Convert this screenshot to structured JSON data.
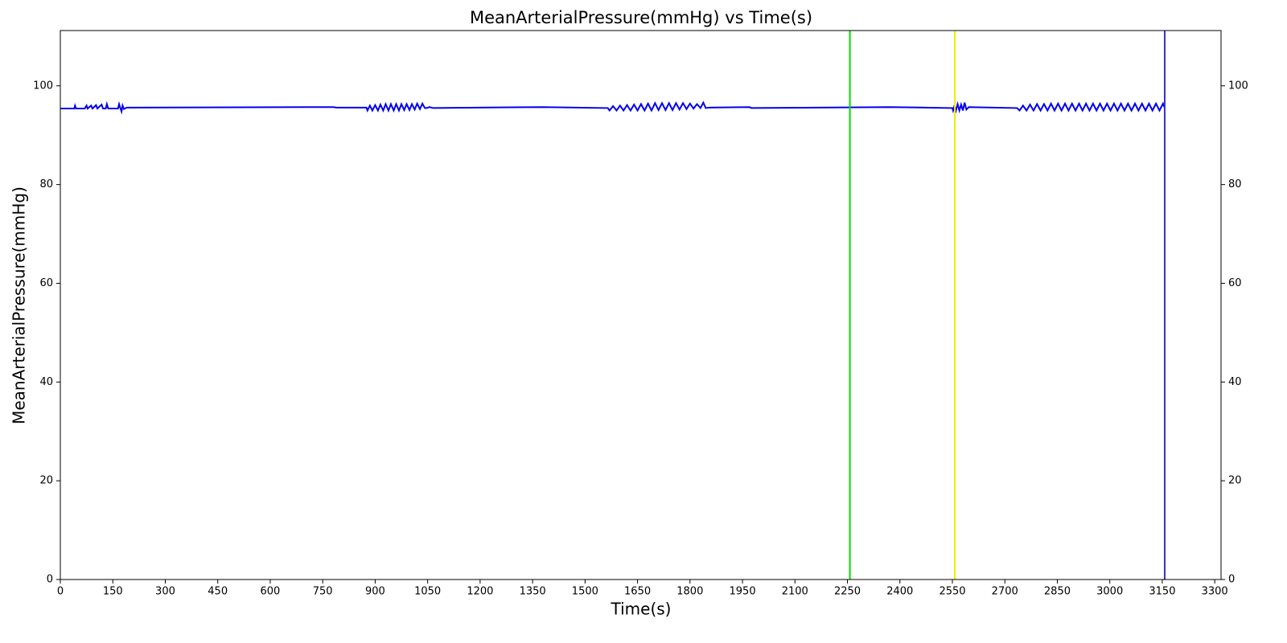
{
  "chart_data": {
    "type": "line",
    "title": "MeanArterialPressure(mmHg) vs Time(s)",
    "x_label": "Time(s)",
    "y_label": "MeanArterialPressure(mmHg)",
    "xlim": [
      0,
      3318
    ],
    "ylim": [
      0,
      111.2
    ],
    "xticks": [
      0,
      150,
      300,
      450,
      600,
      750,
      900,
      1050,
      1200,
      1350,
      1500,
      1650,
      1800,
      1950,
      2100,
      2250,
      2400,
      2550,
      2700,
      2850,
      3000,
      3150,
      3300
    ],
    "yticks": [
      0,
      20,
      40,
      60,
      80,
      100
    ],
    "right_axis_ticks": true,
    "grid": false,
    "x": [
      0,
      40,
      42,
      45,
      70,
      75,
      78,
      88,
      92,
      102,
      106,
      118,
      122,
      130,
      133,
      137,
      165,
      168,
      172,
      175,
      178,
      182,
      190,
      780,
      790,
      875,
      878,
      885,
      892,
      900,
      908,
      915,
      923,
      930,
      938,
      945,
      953,
      960,
      968,
      975,
      983,
      990,
      998,
      1005,
      1013,
      1020,
      1028,
      1035,
      1042,
      1048,
      1055,
      1065,
      1380,
      1565,
      1570,
      1580,
      1590,
      1600,
      1610,
      1620,
      1630,
      1640,
      1650,
      1660,
      1670,
      1680,
      1690,
      1700,
      1710,
      1720,
      1730,
      1740,
      1750,
      1760,
      1770,
      1780,
      1790,
      1800,
      1810,
      1820,
      1830,
      1838,
      1845,
      1855,
      1970,
      1975,
      2370,
      2550,
      2552,
      2556,
      2560,
      2565,
      2570,
      2575,
      2580,
      2585,
      2590,
      2597,
      2735,
      2742,
      2752,
      2762,
      2772,
      2782,
      2792,
      2802,
      2812,
      2822,
      2832,
      2842,
      2852,
      2862,
      2872,
      2882,
      2892,
      2902,
      2912,
      2922,
      2932,
      2942,
      2952,
      2962,
      2972,
      2982,
      2992,
      3002,
      3012,
      3022,
      3032,
      3042,
      3052,
      3062,
      3072,
      3082,
      3092,
      3102,
      3112,
      3122,
      3132,
      3142,
      3152,
      3157
    ],
    "series": [
      {
        "name": "MeanArterialPressure(mmHg)",
        "color": "#0000ee",
        "values": [
          95.4,
          95.4,
          96.0,
          95.4,
          95.4,
          96.0,
          95.4,
          96.0,
          95.4,
          96.1,
          95.4,
          96.2,
          95.4,
          95.4,
          96.3,
          95.4,
          95.4,
          96.3,
          95.4,
          94.8,
          96.0,
          95.3,
          95.6,
          95.7,
          95.6,
          95.6,
          95.0,
          96.0,
          95.0,
          96.1,
          95.0,
          96.2,
          95.0,
          96.3,
          95.0,
          96.3,
          95.0,
          96.3,
          95.0,
          96.3,
          95.1,
          96.3,
          95.1,
          96.3,
          95.2,
          96.4,
          95.3,
          96.4,
          95.5,
          95.5,
          95.7,
          95.5,
          95.7,
          95.5,
          95.0,
          95.9,
          95.0,
          96.0,
          95.0,
          96.1,
          95.0,
          96.2,
          95.0,
          96.3,
          95.0,
          96.4,
          95.0,
          96.5,
          95.1,
          96.5,
          95.1,
          96.5,
          95.1,
          96.5,
          95.2,
          96.5,
          95.3,
          96.4,
          95.4,
          96.3,
          95.5,
          96.6,
          95.5,
          95.6,
          95.7,
          95.5,
          95.7,
          95.5,
          95.0,
          96.0,
          95.0,
          96.3,
          95.0,
          96.2,
          95.0,
          96.6,
          95.2,
          95.7,
          95.5,
          95.0,
          96.0,
          95.0,
          96.2,
          95.0,
          96.3,
          95.0,
          96.3,
          95.0,
          96.4,
          95.0,
          96.4,
          95.0,
          96.4,
          95.0,
          96.4,
          95.0,
          96.4,
          95.0,
          96.4,
          95.0,
          96.4,
          95.0,
          96.4,
          95.0,
          96.4,
          95.0,
          96.4,
          95.0,
          96.4,
          95.0,
          96.4,
          95.0,
          96.4,
          95.0,
          96.4,
          95.0,
          96.4,
          95.0,
          96.4,
          95.0,
          96.4,
          95.5
        ]
      }
    ],
    "vlines": [
      {
        "x": 2257,
        "color": "#00dd00"
      },
      {
        "x": 2557,
        "color": "#eeee00"
      },
      {
        "x": 3157,
        "color": "#3333cc"
      }
    ]
  }
}
